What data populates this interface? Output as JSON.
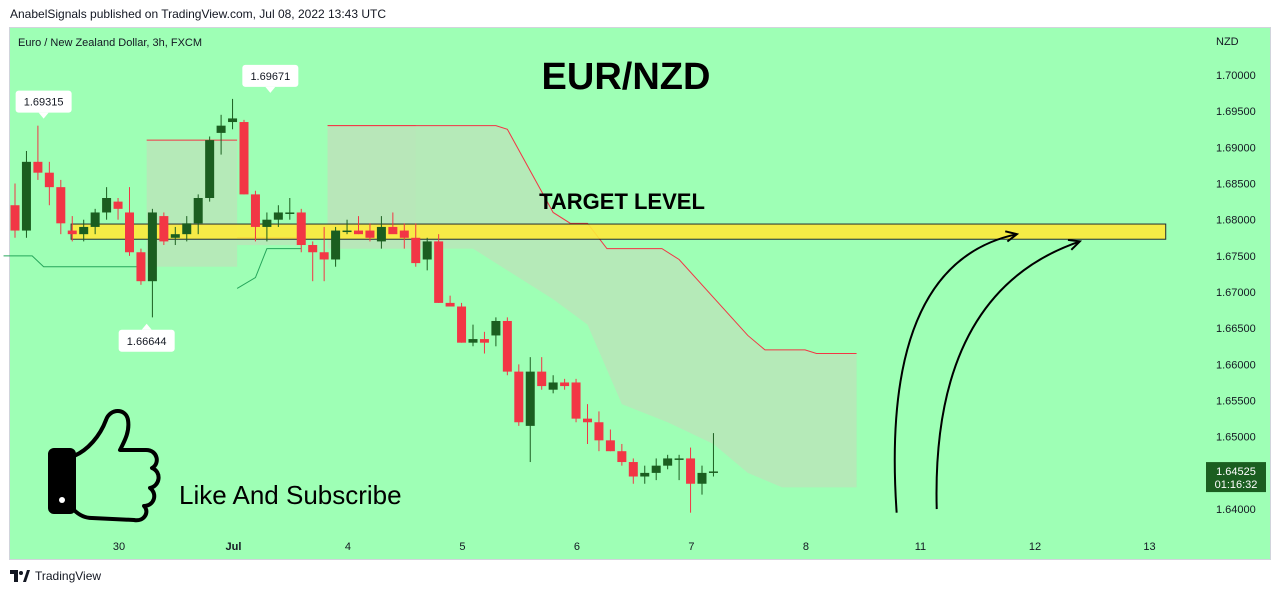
{
  "header": {
    "published_text": "AnabelSignals published on TradingView.com, Jul 08, 2022 13:43 UTC"
  },
  "footer": {
    "brand": "TradingView"
  },
  "colors": {
    "background": "#9effb5",
    "up": "#1b5e20",
    "down": "#f23645",
    "band_fill": "#b9e6b9",
    "band_line_upper": "#f23645",
    "band_line_lower": "#26a65b",
    "target_zone": "#ffeb3b",
    "text": "#131722"
  },
  "chart_data": {
    "type": "candlestick",
    "symbol_label": "Euro / New Zealand Dollar, 3h, FXCM",
    "title": "EUR/NZD",
    "currency_label": "NZD",
    "ylim": [
      1.636,
      1.7065
    ],
    "y_ticks": [
      "1.70000",
      "1.69500",
      "1.69000",
      "1.68500",
      "1.68000",
      "1.67500",
      "1.67000",
      "1.66500",
      "1.66000",
      "1.65500",
      "1.65000",
      "1.64500",
      "1.64000"
    ],
    "x_ticks": [
      {
        "label": "30",
        "pos": 9.08
      },
      {
        "label": "Jul",
        "pos": 19.08
      },
      {
        "label": "4",
        "pos": 29.08
      },
      {
        "label": "5",
        "pos": 39.08
      },
      {
        "label": "6",
        "pos": 49.08
      },
      {
        "label": "7",
        "pos": 59.08
      },
      {
        "label": "8",
        "pos": 69.08
      },
      {
        "label": "11",
        "pos": 79.08
      },
      {
        "label": "12",
        "pos": 89.08
      },
      {
        "label": "13",
        "pos": 99.08
      }
    ],
    "candles": [
      [
        1.682,
        1.685,
        1.6775,
        1.6785
      ],
      [
        1.6785,
        1.6895,
        1.6775,
        1.688
      ],
      [
        1.688,
        1.693,
        1.6855,
        1.6865
      ],
      [
        1.6865,
        1.688,
        1.682,
        1.6845
      ],
      [
        1.6845,
        1.6855,
        1.678,
        1.6795
      ],
      [
        1.6785,
        1.6805,
        1.677,
        1.678
      ],
      [
        1.678,
        1.68,
        1.677,
        1.679
      ],
      [
        1.679,
        1.6815,
        1.678,
        1.681
      ],
      [
        1.681,
        1.6845,
        1.68,
        1.683
      ],
      [
        1.6825,
        1.683,
        1.68,
        1.6815
      ],
      [
        1.681,
        1.6845,
        1.675,
        1.6755
      ],
      [
        1.6755,
        1.676,
        1.671,
        1.6715
      ],
      [
        1.6715,
        1.6815,
        1.6665,
        1.681
      ],
      [
        1.6805,
        1.681,
        1.6765,
        1.677
      ],
      [
        1.6775,
        1.679,
        1.6765,
        1.678
      ],
      [
        1.678,
        1.6805,
        1.677,
        1.6795
      ],
      [
        1.6795,
        1.6835,
        1.678,
        1.683
      ],
      [
        1.683,
        1.6915,
        1.6825,
        1.691
      ],
      [
        1.692,
        1.6945,
        1.689,
        1.693
      ],
      [
        1.6935,
        1.6967,
        1.6925,
        1.694
      ],
      [
        1.6935,
        1.6938,
        1.6835,
        1.6835
      ],
      [
        1.6835,
        1.684,
        1.677,
        1.679
      ],
      [
        1.679,
        1.681,
        1.677,
        1.68
      ],
      [
        1.68,
        1.682,
        1.679,
        1.681
      ],
      [
        1.681,
        1.683,
        1.68,
        1.681
      ],
      [
        1.681,
        1.6815,
        1.6755,
        1.6765
      ],
      [
        1.6765,
        1.677,
        1.6715,
        1.6755
      ],
      [
        1.6755,
        1.679,
        1.6715,
        1.6745
      ],
      [
        1.6745,
        1.679,
        1.6735,
        1.6785
      ],
      [
        1.6785,
        1.68,
        1.678,
        1.6785
      ],
      [
        1.6785,
        1.6805,
        1.678,
        1.678
      ],
      [
        1.6785,
        1.6795,
        1.677,
        1.6775
      ],
      [
        1.677,
        1.6805,
        1.676,
        1.679
      ],
      [
        1.679,
        1.681,
        1.6785,
        1.678
      ],
      [
        1.6785,
        1.6795,
        1.676,
        1.6775
      ],
      [
        1.6775,
        1.6795,
        1.6735,
        1.674
      ],
      [
        1.6745,
        1.6775,
        1.673,
        1.677
      ],
      [
        1.677,
        1.678,
        1.6685,
        1.6685
      ],
      [
        1.6685,
        1.6695,
        1.668,
        1.668
      ],
      [
        1.668,
        1.6685,
        1.663,
        1.663
      ],
      [
        1.663,
        1.6655,
        1.6625,
        1.6635
      ],
      [
        1.6635,
        1.6645,
        1.6615,
        1.663
      ],
      [
        1.664,
        1.6665,
        1.6625,
        1.666
      ],
      [
        1.666,
        1.6665,
        1.6585,
        1.659
      ],
      [
        1.659,
        1.66,
        1.6515,
        1.652
      ],
      [
        1.6515,
        1.661,
        1.6465,
        1.659
      ],
      [
        1.659,
        1.661,
        1.6565,
        1.657
      ],
      [
        1.6565,
        1.6585,
        1.656,
        1.6575
      ],
      [
        1.6575,
        1.658,
        1.6565,
        1.657
      ],
      [
        1.6575,
        1.658,
        1.652,
        1.6525
      ],
      [
        1.6525,
        1.6545,
        1.649,
        1.652
      ],
      [
        1.652,
        1.6535,
        1.648,
        1.6495
      ],
      [
        1.6495,
        1.651,
        1.648,
        1.648
      ],
      [
        1.648,
        1.649,
        1.646,
        1.6465
      ],
      [
        1.6465,
        1.647,
        1.6435,
        1.6445
      ],
      [
        1.6445,
        1.646,
        1.6435,
        1.645
      ],
      [
        1.645,
        1.647,
        1.644,
        1.646
      ],
      [
        1.646,
        1.6475,
        1.6455,
        1.647
      ],
      [
        1.647,
        1.6475,
        1.644,
        1.647
      ],
      [
        1.647,
        1.6485,
        1.6395,
        1.6435
      ],
      [
        1.6435,
        1.646,
        1.642,
        1.645
      ],
      [
        1.645,
        1.6505,
        1.6445,
        1.6452
      ]
    ],
    "band_segments": [
      {
        "x_start": 11.5,
        "x_end": 19.4,
        "top": 1.691,
        "bottom": 1.6735
      },
      {
        "x_start": 19.4,
        "x_end": 25.0,
        "top": 1.6775,
        "bottom": 1.6765
      },
      {
        "x_start": 27.3,
        "x_end": 35.0,
        "top": 1.693,
        "bottom": 1.676
      }
    ],
    "band_lower_line": [
      [
        -1,
        1.675
      ],
      [
        1.5,
        1.675
      ],
      [
        2.5,
        1.6735
      ],
      [
        11,
        1.6735
      ]
    ],
    "band_lower_line2": [
      [
        19.4,
        1.6705
      ],
      [
        21.0,
        1.672
      ],
      [
        22.0,
        1.676
      ],
      [
        25.0,
        1.676
      ]
    ],
    "resistance_line": [
      [
        27.3,
        1.693
      ],
      [
        42.0,
        1.693
      ],
      [
        43.0,
        1.6925
      ],
      [
        47.0,
        1.681
      ],
      [
        48.5,
        1.6795
      ],
      [
        50.0,
        1.6795
      ],
      [
        51.7,
        1.676
      ],
      [
        56.5,
        1.676
      ],
      [
        58.0,
        1.6745
      ],
      [
        64.0,
        1.664
      ],
      [
        65.5,
        1.662
      ],
      [
        69.0,
        1.662
      ],
      [
        70.0,
        1.6615
      ],
      [
        73.5,
        1.6615
      ]
    ],
    "big_band": {
      "upper": [
        [
          27.3,
          1.693
        ],
        [
          42.0,
          1.693
        ],
        [
          43.0,
          1.6925
        ],
        [
          47.0,
          1.681
        ],
        [
          48.5,
          1.6795
        ],
        [
          50.0,
          1.6795
        ],
        [
          51.7,
          1.676
        ],
        [
          56.5,
          1.676
        ],
        [
          58.0,
          1.6745
        ],
        [
          64.0,
          1.664
        ],
        [
          65.5,
          1.662
        ],
        [
          69.0,
          1.662
        ],
        [
          70.0,
          1.6615
        ],
        [
          73.5,
          1.6615
        ]
      ],
      "lower": [
        [
          27.3,
          1.676
        ],
        [
          33.0,
          1.676
        ],
        [
          40.0,
          1.676
        ],
        [
          43.0,
          1.673
        ],
        [
          47.0,
          1.669
        ],
        [
          50.0,
          1.6655
        ],
        [
          53.0,
          1.6545
        ],
        [
          57.0,
          1.652
        ],
        [
          61.0,
          1.649
        ],
        [
          64.0,
          1.645
        ],
        [
          67.0,
          1.643
        ],
        [
          73.5,
          1.643
        ]
      ]
    },
    "target_zone": {
      "top": 1.6794,
      "bottom": 1.6773,
      "x_start": 4.9,
      "x_end": 100.5
    },
    "callouts": [
      {
        "label": "1.69315",
        "price": 1.69315,
        "x": 2.5,
        "side": "above"
      },
      {
        "label": "1.69671",
        "price": 1.69671,
        "x": 22.3,
        "side": "above"
      },
      {
        "label": "1.66644",
        "price": 1.66644,
        "x": 11.5,
        "side": "below"
      }
    ],
    "last_price": {
      "label": "1.64525",
      "price": 1.64525,
      "countdown": "01:16:32"
    },
    "annotations": {
      "target_label": "TARGET LEVEL",
      "cta_text": "Like And Subscribe"
    },
    "arrows": [
      {
        "from": [
          77.0,
          1.6395
        ],
        "ctrl": [
          75.5,
          1.674
        ],
        "to": [
          87.5,
          1.678
        ]
      },
      {
        "from": [
          80.5,
          1.64
        ],
        "ctrl": [
          80.0,
          1.67
        ],
        "to": [
          93.0,
          1.677
        ]
      }
    ]
  }
}
